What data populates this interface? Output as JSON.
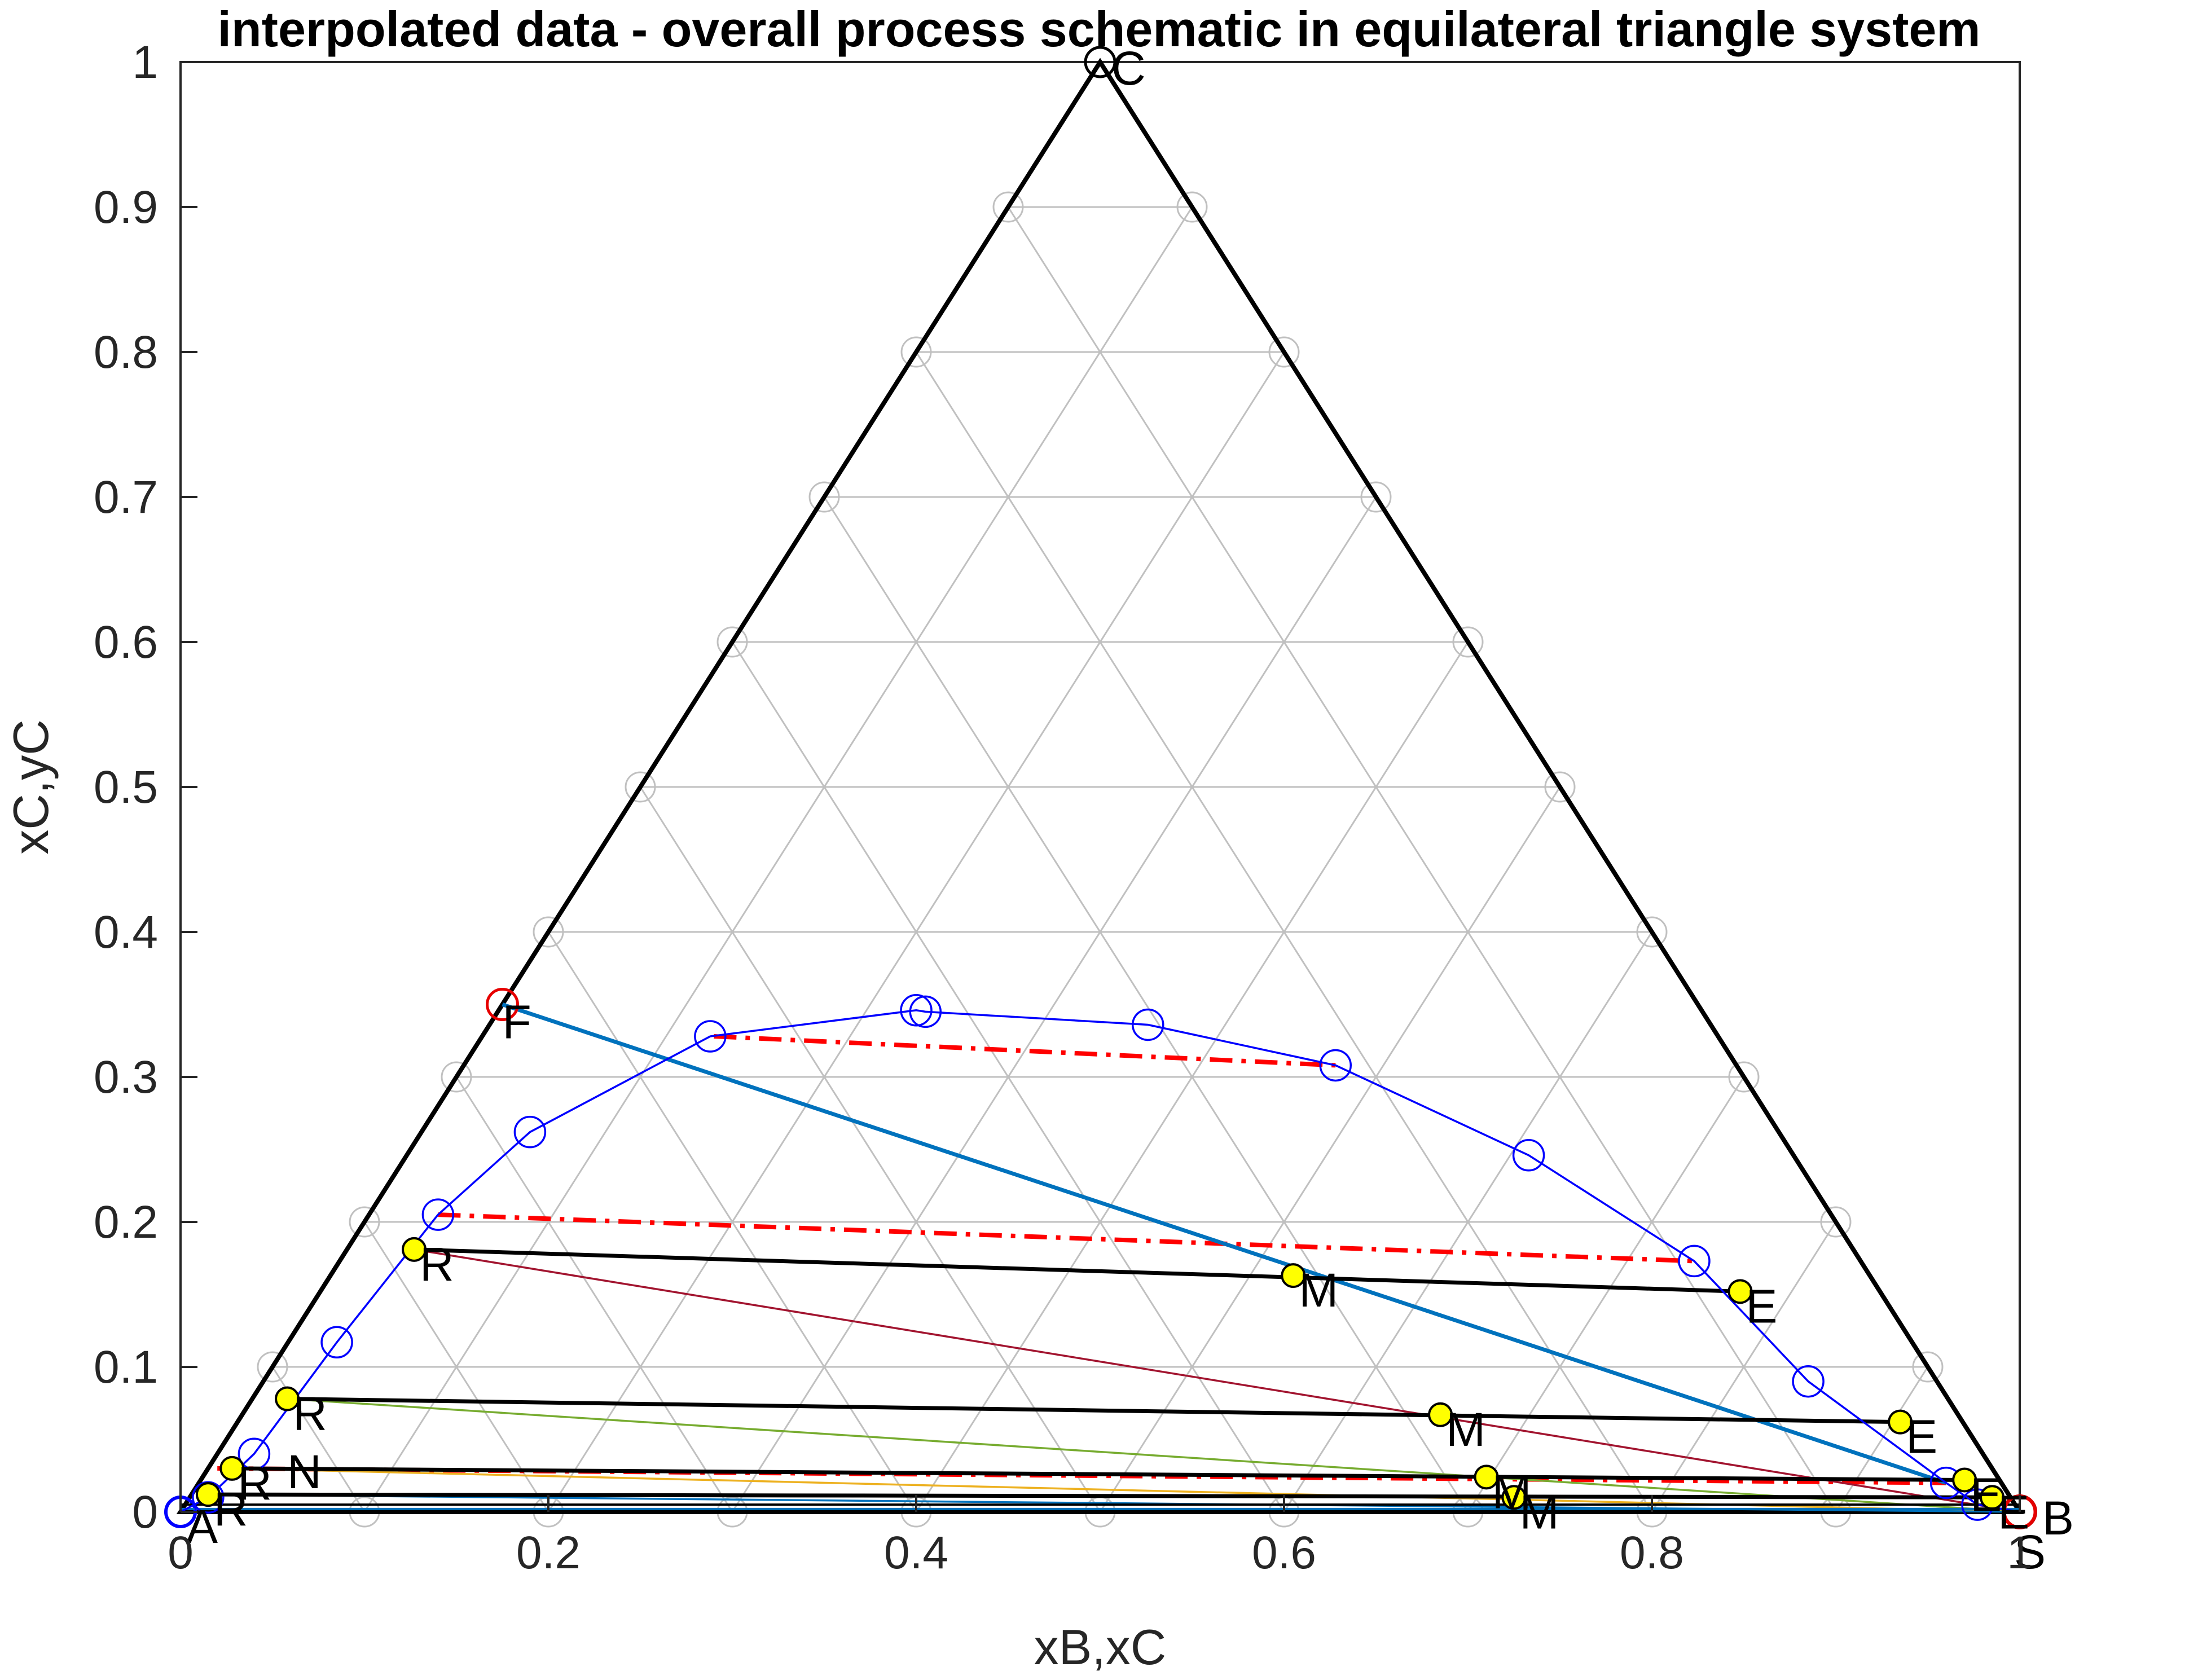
{
  "chart_data": {
    "type": "scatter",
    "title": "interpolated data - overall process schematic in equilateral triangle system",
    "xlabel": "xB,xC",
    "ylabel": "xC,yC",
    "xlim": [
      0,
      1
    ],
    "ylim": [
      0,
      1
    ],
    "xticks": [
      "0",
      "0.2",
      "0.4",
      "0.6",
      "0.8",
      "1"
    ],
    "yticks": [
      "0",
      "0.1",
      "0.2",
      "0.3",
      "0.4",
      "0.5",
      "0.6",
      "0.7",
      "0.8",
      "0.9",
      "1"
    ],
    "grid_step": 0.1,
    "colors": {
      "grid": "#c0c0c0",
      "triangle": "#000000",
      "binodal": "#0000ff",
      "tie_line_dashed": "#ff0000",
      "operating_line": "#0072bd",
      "stage_tie_line": "#000000",
      "marker_fill": "#ffff00",
      "feed_marker": "#e60000",
      "mix_line_1": "#a2142f",
      "mix_line_2": "#77ac30",
      "mix_line_3": "#edb120",
      "mix_line_4": "#0072bd"
    },
    "vertex_labels": [
      {
        "text": "A",
        "x": 0.0,
        "y": 0.0
      },
      {
        "text": "B",
        "x": 1.0,
        "y": 0.0
      },
      {
        "text": "C",
        "x": 0.5,
        "y": 1.0
      }
    ],
    "binodal_curve": {
      "x": [
        0.0,
        0.015,
        0.04,
        0.085,
        0.14,
        0.19,
        0.288,
        0.4,
        0.405,
        0.526,
        0.628,
        0.733,
        0.823,
        0.885,
        0.96,
        0.977,
        1.0
      ],
      "y": [
        0.0,
        0.01,
        0.04,
        0.117,
        0.205,
        0.262,
        0.328,
        0.346,
        0.345,
        0.336,
        0.308,
        0.246,
        0.173,
        0.09,
        0.02,
        0.005,
        0.0
      ]
    },
    "dashed_tie_lines": [
      {
        "x": [
          0.29,
          0.628
        ],
        "y": [
          0.328,
          0.308
        ]
      },
      {
        "x": [
          0.14,
          0.823
        ],
        "y": [
          0.205,
          0.173
        ]
      },
      {
        "x": [
          0.02,
          0.96
        ],
        "y": [
          0.03,
          0.02
        ]
      }
    ],
    "operating_line": {
      "x": [
        0.175,
        0.96
      ],
      "y": [
        0.35,
        0.02
      ]
    },
    "feed_points": [
      {
        "label": "F",
        "x": 0.175,
        "y": 0.35
      },
      {
        "label": "S",
        "x": 1.0,
        "y": 0.0
      }
    ],
    "raffinate_points": [
      {
        "label": "R",
        "x": 0.127,
        "y": 0.181
      },
      {
        "label": "R",
        "x": 0.058,
        "y": 0.078
      },
      {
        "label": "R",
        "x": 0.028,
        "y": 0.03
      },
      {
        "label": "R",
        "x": 0.015,
        "y": 0.012
      }
    ],
    "extract_points": [
      {
        "label": "E",
        "x": 0.848,
        "y": 0.152
      },
      {
        "label": "E",
        "x": 0.935,
        "y": 0.062
      },
      {
        "label": "E",
        "x": 0.97,
        "y": 0.022
      },
      {
        "label": "E",
        "x": 0.985,
        "y": 0.01
      }
    ],
    "mixture_points": [
      {
        "label": "M",
        "x": 0.605,
        "y": 0.163
      },
      {
        "label": "M",
        "x": 0.685,
        "y": 0.067
      },
      {
        "label": "M",
        "x": 0.71,
        "y": 0.024
      },
      {
        "label": "M",
        "x": 0.725,
        "y": 0.01
      }
    ],
    "extra_labels": [
      {
        "text": "N",
        "x": 0.058,
        "y": 0.028
      }
    ]
  }
}
